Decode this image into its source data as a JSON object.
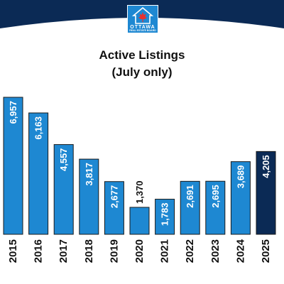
{
  "brand": {
    "name": "OTTAWA",
    "tagline": "REAL ESTATE BOARD",
    "logo_icon": "maple-leaf-house-icon",
    "band_color": "#0B2A55",
    "logo_color": "#1E88D2"
  },
  "chart_data": {
    "type": "bar",
    "title": [
      "Active Listings",
      "(July only)"
    ],
    "categories": [
      "2015",
      "2016",
      "2017",
      "2018",
      "2019",
      "2020",
      "2021",
      "2022",
      "2023",
      "2024",
      "2025"
    ],
    "values": [
      6957,
      6163,
      4557,
      3817,
      2677,
      1370,
      1783,
      2691,
      2695,
      3689,
      4205
    ],
    "value_labels": [
      "6,957",
      "6,163",
      "4,557",
      "3,817",
      "2,677",
      "1,370",
      "1,783",
      "2,691",
      "2,695",
      "3,689",
      "4,205"
    ],
    "ylim": [
      0,
      6957
    ],
    "grid": false,
    "bar_color": "#1E88D2",
    "highlight_color": "#0B2A55",
    "highlight_index": 10,
    "label_inside": [
      true,
      true,
      true,
      true,
      true,
      false,
      true,
      true,
      true,
      true,
      true
    ]
  }
}
